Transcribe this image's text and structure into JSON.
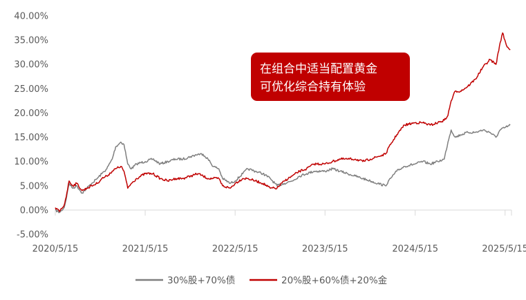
{
  "chart_data": {
    "type": "line",
    "title": "",
    "xlabel": "",
    "ylabel": "",
    "x_ticks": [
      "2020/5/15",
      "2021/5/15",
      "2022/5/15",
      "2023/5/15",
      "2024/5/15",
      "2025/5/15"
    ],
    "y_ticks": [
      "-5.00%",
      "0.00%",
      "5.00%",
      "10.00%",
      "15.00%",
      "20.00%",
      "25.00%",
      "30.00%",
      "35.00%",
      "40.00%"
    ],
    "ylim": [
      -5,
      40
    ],
    "xlim": [
      "2020-05-15",
      "2025-06-10"
    ],
    "grid": false,
    "legend_position": "bottom",
    "series": [
      {
        "name": "30%股+70%债",
        "color": "#7f7f7f",
        "points": [
          [
            "2020-05-15",
            0.0
          ],
          [
            "2020-06-01",
            -0.5
          ],
          [
            "2020-06-20",
            0.5
          ],
          [
            "2020-07-01",
            3.0
          ],
          [
            "2020-07-10",
            5.5
          ],
          [
            "2020-07-25",
            4.5
          ],
          [
            "2020-08-10",
            5.0
          ],
          [
            "2020-09-01",
            3.5
          ],
          [
            "2020-09-20",
            4.5
          ],
          [
            "2020-10-10",
            5.5
          ],
          [
            "2020-11-01",
            6.5
          ],
          [
            "2020-11-20",
            7.5
          ],
          [
            "2020-12-10",
            8.5
          ],
          [
            "2021-01-01",
            10.5
          ],
          [
            "2021-01-15",
            13.0
          ],
          [
            "2021-02-05",
            14.0
          ],
          [
            "2021-02-18",
            13.5
          ],
          [
            "2021-03-05",
            9.5
          ],
          [
            "2021-03-20",
            8.5
          ],
          [
            "2021-04-10",
            9.5
          ],
          [
            "2021-05-15",
            10.0
          ],
          [
            "2021-06-15",
            10.5
          ],
          [
            "2021-07-15",
            9.5
          ],
          [
            "2021-08-15",
            10.0
          ],
          [
            "2021-09-15",
            10.5
          ],
          [
            "2021-10-15",
            10.5
          ],
          [
            "2021-11-15",
            11.0
          ],
          [
            "2021-12-15",
            11.5
          ],
          [
            "2022-01-05",
            11.5
          ],
          [
            "2022-01-25",
            10.5
          ],
          [
            "2022-02-15",
            9.0
          ],
          [
            "2022-03-10",
            8.5
          ],
          [
            "2022-03-25",
            6.5
          ],
          [
            "2022-04-25",
            5.5
          ],
          [
            "2022-05-15",
            6.0
          ],
          [
            "2022-06-15",
            7.5
          ],
          [
            "2022-07-05",
            8.5
          ],
          [
            "2022-08-05",
            8.0
          ],
          [
            "2022-09-05",
            7.5
          ],
          [
            "2022-10-05",
            6.5
          ],
          [
            "2022-11-01",
            5.0
          ],
          [
            "2022-12-01",
            5.5
          ],
          [
            "2023-01-01",
            6.0
          ],
          [
            "2023-02-01",
            7.0
          ],
          [
            "2023-03-01",
            7.5
          ],
          [
            "2023-04-01",
            8.0
          ],
          [
            "2023-05-15",
            8.0
          ],
          [
            "2023-06-15",
            8.5
          ],
          [
            "2023-07-15",
            8.0
          ],
          [
            "2023-08-15",
            7.5
          ],
          [
            "2023-09-15",
            7.0
          ],
          [
            "2023-10-15",
            6.5
          ],
          [
            "2023-11-15",
            6.0
          ],
          [
            "2023-12-15",
            5.5
          ],
          [
            "2024-01-15",
            5.0
          ],
          [
            "2024-02-05",
            6.5
          ],
          [
            "2024-03-01",
            8.0
          ],
          [
            "2024-04-01",
            9.0
          ],
          [
            "2024-05-15",
            9.5
          ],
          [
            "2024-06-15",
            10.0
          ],
          [
            "2024-07-15",
            9.5
          ],
          [
            "2024-08-15",
            10.0
          ],
          [
            "2024-09-10",
            10.5
          ],
          [
            "2024-09-25",
            14.0
          ],
          [
            "2024-10-08",
            16.5
          ],
          [
            "2024-10-25",
            15.0
          ],
          [
            "2024-11-15",
            15.5
          ],
          [
            "2024-12-15",
            16.0
          ],
          [
            "2025-01-15",
            16.0
          ],
          [
            "2025-02-15",
            16.5
          ],
          [
            "2025-03-15",
            16.0
          ],
          [
            "2025-04-08",
            15.0
          ],
          [
            "2025-04-25",
            16.5
          ],
          [
            "2025-05-15",
            17.0
          ],
          [
            "2025-06-05",
            17.5
          ]
        ]
      },
      {
        "name": "20%股+60%债+20%金",
        "color": "#c00000",
        "points": [
          [
            "2020-05-15",
            0.5
          ],
          [
            "2020-06-01",
            -0.3
          ],
          [
            "2020-06-20",
            1.0
          ],
          [
            "2020-07-01",
            3.5
          ],
          [
            "2020-07-10",
            6.0
          ],
          [
            "2020-07-25",
            5.0
          ],
          [
            "2020-08-10",
            5.5
          ],
          [
            "2020-09-01",
            4.0
          ],
          [
            "2020-09-20",
            4.5
          ],
          [
            "2020-10-10",
            5.0
          ],
          [
            "2020-11-01",
            5.5
          ],
          [
            "2020-11-20",
            6.5
          ],
          [
            "2020-12-10",
            7.0
          ],
          [
            "2021-01-01",
            8.0
          ],
          [
            "2021-01-15",
            8.5
          ],
          [
            "2021-02-05",
            9.0
          ],
          [
            "2021-02-18",
            8.0
          ],
          [
            "2021-03-05",
            4.5
          ],
          [
            "2021-03-20",
            5.5
          ],
          [
            "2021-04-10",
            6.5
          ],
          [
            "2021-05-15",
            7.5
          ],
          [
            "2021-06-15",
            7.5
          ],
          [
            "2021-07-15",
            6.5
          ],
          [
            "2021-08-15",
            6.0
          ],
          [
            "2021-09-15",
            6.5
          ],
          [
            "2021-10-15",
            6.5
          ],
          [
            "2021-11-15",
            7.0
          ],
          [
            "2021-12-15",
            7.5
          ],
          [
            "2022-01-05",
            7.0
          ],
          [
            "2022-01-25",
            6.5
          ],
          [
            "2022-02-15",
            6.5
          ],
          [
            "2022-03-10",
            6.5
          ],
          [
            "2022-03-25",
            5.0
          ],
          [
            "2022-04-25",
            4.5
          ],
          [
            "2022-05-15",
            5.5
          ],
          [
            "2022-06-15",
            6.5
          ],
          [
            "2022-07-05",
            6.5
          ],
          [
            "2022-08-05",
            6.0
          ],
          [
            "2022-09-05",
            5.5
          ],
          [
            "2022-10-05",
            4.5
          ],
          [
            "2022-11-01",
            4.5
          ],
          [
            "2022-12-01",
            6.0
          ],
          [
            "2023-01-01",
            7.0
          ],
          [
            "2023-02-01",
            8.0
          ],
          [
            "2023-03-01",
            8.5
          ],
          [
            "2023-04-01",
            9.5
          ],
          [
            "2023-05-15",
            9.5
          ],
          [
            "2023-06-15",
            10.0
          ],
          [
            "2023-07-15",
            10.5
          ],
          [
            "2023-08-15",
            10.5
          ],
          [
            "2023-09-15",
            10.5
          ],
          [
            "2023-10-15",
            10.0
          ],
          [
            "2023-11-15",
            10.5
          ],
          [
            "2023-12-15",
            11.0
          ],
          [
            "2024-01-15",
            11.5
          ],
          [
            "2024-02-05",
            13.5
          ],
          [
            "2024-03-01",
            15.5
          ],
          [
            "2024-04-01",
            17.5
          ],
          [
            "2024-05-15",
            18.0
          ],
          [
            "2024-06-15",
            18.0
          ],
          [
            "2024-07-15",
            17.5
          ],
          [
            "2024-08-15",
            18.0
          ],
          [
            "2024-09-10",
            18.5
          ],
          [
            "2024-09-25",
            19.5
          ],
          [
            "2024-10-08",
            22.5
          ],
          [
            "2024-10-25",
            24.5
          ],
          [
            "2024-11-15",
            24.5
          ],
          [
            "2024-12-15",
            25.5
          ],
          [
            "2025-01-15",
            27.0
          ],
          [
            "2025-02-15",
            29.5
          ],
          [
            "2025-03-15",
            31.0
          ],
          [
            "2025-04-08",
            30.0
          ],
          [
            "2025-04-25",
            34.5
          ],
          [
            "2025-05-05",
            36.5
          ],
          [
            "2025-05-20",
            34.0
          ],
          [
            "2025-06-05",
            33.0
          ]
        ]
      }
    ],
    "annotation": {
      "lines": [
        "在组合中适当配置黄金",
        "可优化综合持有体验"
      ],
      "background": "#c00000",
      "color": "#ffffff"
    }
  }
}
